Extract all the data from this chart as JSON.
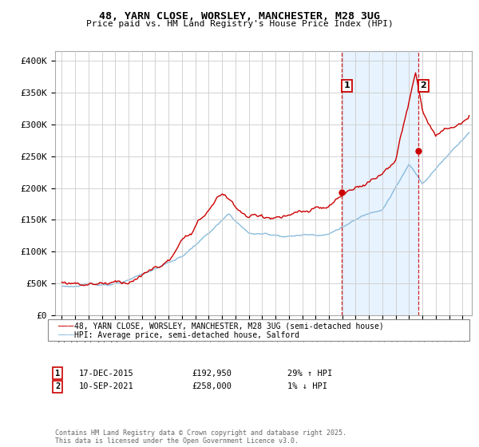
{
  "title": "48, YARN CLOSE, WORSLEY, MANCHESTER, M28 3UG",
  "subtitle": "Price paid vs. HM Land Registry's House Price Index (HPI)",
  "ylabel_ticks": [
    "£0",
    "£50K",
    "£100K",
    "£150K",
    "£200K",
    "£250K",
    "£300K",
    "£350K",
    "£400K"
  ],
  "ytick_values": [
    0,
    50000,
    100000,
    150000,
    200000,
    250000,
    300000,
    350000,
    400000
  ],
  "ylim": [
    0,
    415000
  ],
  "xlim_start": 1994.5,
  "xlim_end": 2025.7,
  "marker1_x": 2015.96,
  "marker1_y": 192950,
  "marker1_label": "1",
  "marker1_date": "17-DEC-2015",
  "marker1_price": "£192,950",
  "marker1_hpi": "29% ↑ HPI",
  "marker2_x": 2021.69,
  "marker2_y": 258000,
  "marker2_label": "2",
  "marker2_date": "10-SEP-2021",
  "marker2_price": "£258,000",
  "marker2_hpi": "1% ↓ HPI",
  "line1_color": "#cc0000",
  "line2_color": "#88bbdd",
  "line1_label": "48, YARN CLOSE, WORSLEY, MANCHESTER, M28 3UG (semi-detached house)",
  "line2_label": "HPI: Average price, semi-detached house, Salford",
  "footer": "Contains HM Land Registry data © Crown copyright and database right 2025.\nThis data is licensed under the Open Government Licence v3.0.",
  "background_color": "#ffffff",
  "grid_color": "#cccccc",
  "shade_color": "#ddeeff",
  "vline_color": "#cc0000",
  "vline_style": "--"
}
